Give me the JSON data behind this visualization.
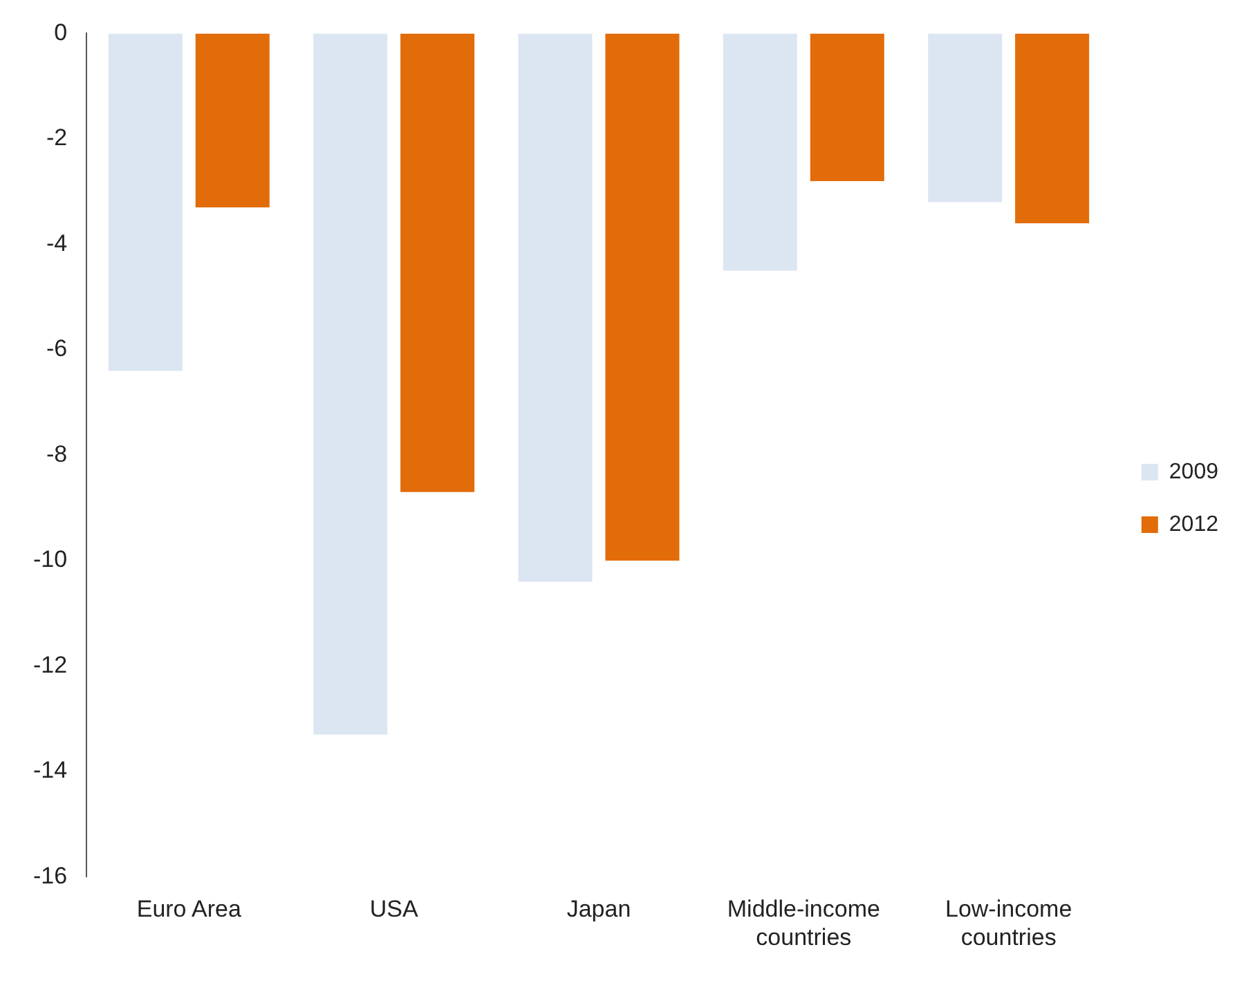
{
  "chart_data": {
    "type": "bar",
    "categories": [
      "Euro Area",
      "USA",
      "Japan",
      "Middle-income countries",
      "Low-income countries"
    ],
    "series": [
      {
        "name": "2009",
        "color": "#dce6f2",
        "values": [
          -6.4,
          -13.3,
          -10.4,
          -4.5,
          -3.2
        ]
      },
      {
        "name": "2012",
        "color": "#e36c0a",
        "values": [
          -3.3,
          -8.7,
          -10.0,
          -2.8,
          -3.6
        ]
      }
    ],
    "ylim": [
      -16,
      0
    ],
    "yticks": [
      -16,
      -14,
      -12,
      -10,
      -8,
      -6,
      -4,
      -2,
      0
    ],
    "grid": false,
    "legend": "right"
  }
}
